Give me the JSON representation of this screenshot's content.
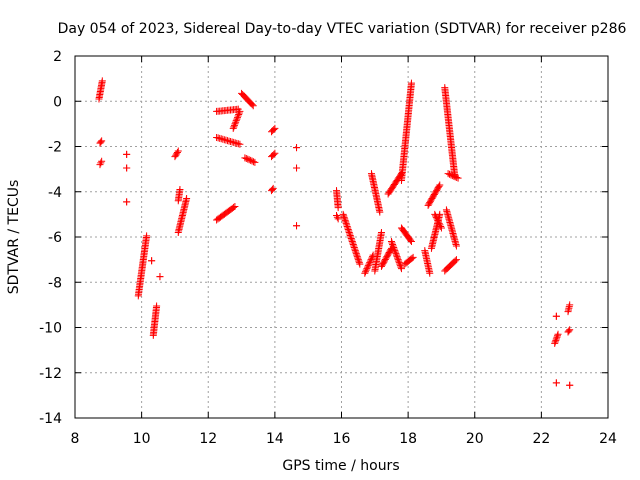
{
  "chart_data": {
    "type": "scatter",
    "title": "Day 054 of 2023, Sidereal Day-to-day VTEC variation (SDTVAR) for receiver p286",
    "xlabel": "GPS time / hours",
    "ylabel": "SDTVAR / TECUs",
    "xlim": [
      8,
      24
    ],
    "ylim": [
      -14,
      2
    ],
    "xticks": [
      "8",
      "10",
      "12",
      "14",
      "16",
      "18",
      "20",
      "22",
      "24"
    ],
    "yticks": [
      "2",
      "0",
      "-2",
      "-4",
      "-6",
      "-8",
      "-10",
      "-12",
      "-14"
    ],
    "grid": true,
    "marker": "+",
    "marker_color": "#ff0000",
    "series": [
      {
        "name": "SDTVAR",
        "segments": [
          {
            "x": [
              8.72,
              8.82
            ],
            "y": [
              0.1,
              0.9
            ]
          },
          {
            "x": [
              8.75,
              8.8
            ],
            "y": [
              -1.85,
              -1.75
            ]
          },
          {
            "x": [
              8.75,
              8.8
            ],
            "y": [
              -2.8,
              -2.65
            ]
          },
          {
            "x": [
              9.55,
              9.55
            ],
            "y": [
              -2.35,
              -2.35
            ]
          },
          {
            "x": [
              9.55,
              9.55
            ],
            "y": [
              -2.95,
              -2.95
            ]
          },
          {
            "x": [
              9.55,
              9.55
            ],
            "y": [
              -4.45,
              -4.45
            ]
          },
          {
            "x": [
              9.9,
              10.15
            ],
            "y": [
              -8.6,
              -5.95
            ]
          },
          {
            "x": [
              10.3,
              10.3
            ],
            "y": [
              -7.05,
              -7.05
            ]
          },
          {
            "x": [
              10.35,
              10.45
            ],
            "y": [
              -10.35,
              -9.05
            ]
          },
          {
            "x": [
              10.55,
              10.55
            ],
            "y": [
              -7.75,
              -7.75
            ]
          },
          {
            "x": [
              11.0,
              11.1
            ],
            "y": [
              -2.45,
              -2.2
            ]
          },
          {
            "x": [
              11.1,
              11.35
            ],
            "y": [
              -5.8,
              -4.3
            ]
          },
          {
            "x": [
              11.1,
              11.15
            ],
            "y": [
              -4.4,
              -3.9
            ]
          },
          {
            "x": [
              12.25,
              12.9
            ],
            "y": [
              -0.45,
              -0.35
            ]
          },
          {
            "x": [
              12.25,
              12.95
            ],
            "y": [
              -1.6,
              -1.9
            ]
          },
          {
            "x": [
              12.75,
              12.95
            ],
            "y": [
              -1.2,
              -0.45
            ]
          },
          {
            "x": [
              12.25,
              12.8
            ],
            "y": [
              -5.25,
              -4.65
            ]
          },
          {
            "x": [
              13.0,
              13.35
            ],
            "y": [
              0.35,
              -0.2
            ]
          },
          {
            "x": [
              13.1,
              13.4
            ],
            "y": [
              -2.5,
              -2.7
            ]
          },
          {
            "x": [
              13.9,
              14.0
            ],
            "y": [
              -1.35,
              -1.2
            ]
          },
          {
            "x": [
              13.9,
              14.0
            ],
            "y": [
              -2.45,
              -2.3
            ]
          },
          {
            "x": [
              13.9,
              13.95
            ],
            "y": [
              -3.95,
              -3.85
            ]
          },
          {
            "x": [
              14.65,
              14.65
            ],
            "y": [
              -2.05,
              -2.05
            ]
          },
          {
            "x": [
              14.65,
              14.65
            ],
            "y": [
              -2.95,
              -2.95
            ]
          },
          {
            "x": [
              14.65,
              14.65
            ],
            "y": [
              -5.5,
              -5.5
            ]
          },
          {
            "x": [
              15.85,
              15.9
            ],
            "y": [
              -3.95,
              -4.7
            ]
          },
          {
            "x": [
              15.85,
              15.9
            ],
            "y": [
              -5.05,
              -5.2
            ]
          },
          {
            "x": [
              16.05,
              16.55
            ],
            "y": [
              -5.0,
              -7.2
            ]
          },
          {
            "x": [
              16.7,
              16.95
            ],
            "y": [
              -7.6,
              -6.8
            ]
          },
          {
            "x": [
              16.9,
              17.15
            ],
            "y": [
              -3.2,
              -4.9
            ]
          },
          {
            "x": [
              17.0,
              17.2
            ],
            "y": [
              -7.5,
              -5.8
            ]
          },
          {
            "x": [
              17.2,
              17.5
            ],
            "y": [
              -7.3,
              -6.5
            ]
          },
          {
            "x": [
              17.4,
              17.8
            ],
            "y": [
              -4.1,
              -3.2
            ]
          },
          {
            "x": [
              17.5,
              17.8
            ],
            "y": [
              -6.2,
              -7.4
            ]
          },
          {
            "x": [
              17.8,
              18.1
            ],
            "y": [
              -3.5,
              0.8
            ]
          },
          {
            "x": [
              17.8,
              18.1
            ],
            "y": [
              -5.6,
              -6.2
            ]
          },
          {
            "x": [
              17.9,
              18.15
            ],
            "y": [
              -7.2,
              -6.9
            ]
          },
          {
            "x": [
              18.5,
              18.65
            ],
            "y": [
              -6.6,
              -7.6
            ]
          },
          {
            "x": [
              18.7,
              18.95
            ],
            "y": [
              -6.5,
              -5.0
            ]
          },
          {
            "x": [
              18.6,
              18.95
            ],
            "y": [
              -4.6,
              -3.7
            ]
          },
          {
            "x": [
              18.8,
              19.0
            ],
            "y": [
              -5.0,
              -5.6
            ]
          },
          {
            "x": [
              19.1,
              19.4
            ],
            "y": [
              0.6,
              -3.3
            ]
          },
          {
            "x": [
              19.15,
              19.45
            ],
            "y": [
              -4.8,
              -6.4
            ]
          },
          {
            "x": [
              19.1,
              19.45
            ],
            "y": [
              -7.5,
              -7.0
            ]
          },
          {
            "x": [
              19.2,
              19.5
            ],
            "y": [
              -3.2,
              -3.4
            ]
          },
          {
            "x": [
              22.4,
              22.5
            ],
            "y": [
              -10.7,
              -10.3
            ]
          },
          {
            "x": [
              22.45,
              22.45
            ],
            "y": [
              -9.5,
              -9.5
            ]
          },
          {
            "x": [
              22.45,
              22.45
            ],
            "y": [
              -12.45,
              -12.45
            ]
          },
          {
            "x": [
              22.8,
              22.85
            ],
            "y": [
              -9.3,
              -9.0
            ]
          },
          {
            "x": [
              22.8,
              22.85
            ],
            "y": [
              -10.2,
              -10.1
            ]
          },
          {
            "x": [
              22.85,
              22.85
            ],
            "y": [
              -12.55,
              -12.55
            ]
          }
        ]
      }
    ]
  }
}
